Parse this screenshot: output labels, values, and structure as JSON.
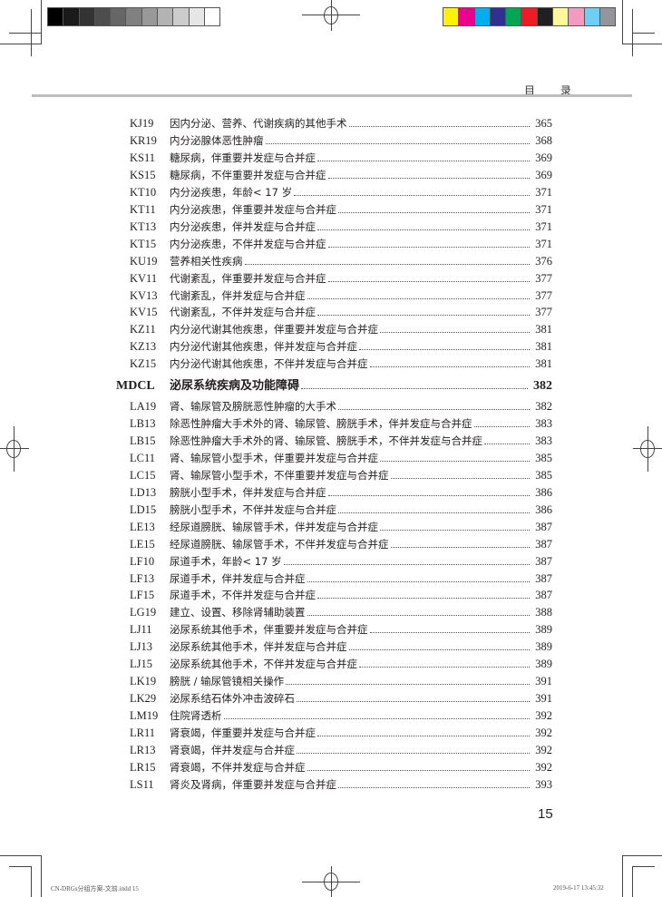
{
  "print_marks": {
    "grayscale_swatches": [
      "#000000",
      "#1a1a1a",
      "#333333",
      "#4d4d4d",
      "#666666",
      "#808080",
      "#999999",
      "#b3b3b3",
      "#cccccc",
      "#e6e6e6",
      "#ffffff"
    ],
    "color_swatches": [
      "#fff200",
      "#ec008c",
      "#00aeef",
      "#2e3192",
      "#00a651",
      "#ed1c24",
      "#231f20",
      "#fff799",
      "#f49ac1",
      "#6dcff6",
      "#939598"
    ]
  },
  "header": {
    "title": "目 录"
  },
  "toc": [
    {
      "code": "KJ19",
      "title": "因内分泌、营养、代谢疾病的其他手术",
      "page": "365"
    },
    {
      "code": "KR19",
      "title": "内分泌腺体恶性肿瘤",
      "page": "368"
    },
    {
      "code": "KS11",
      "title": "糖尿病，伴重要并发症与合并症",
      "page": "369"
    },
    {
      "code": "KS15",
      "title": "糖尿病，不伴重要并发症与合并症",
      "page": "369"
    },
    {
      "code": "KT10",
      "title": "内分泌疾患，年龄< 17 岁",
      "page": "371"
    },
    {
      "code": "KT11",
      "title": "内分泌疾患，伴重要并发症与合并症",
      "page": "371"
    },
    {
      "code": "KT13",
      "title": "内分泌疾患，伴并发症与合并症",
      "page": "371"
    },
    {
      "code": "KT15",
      "title": "内分泌疾患，不伴并发症与合并症",
      "page": "371"
    },
    {
      "code": "KU19",
      "title": "营养相关性疾病",
      "page": "376"
    },
    {
      "code": "KV11",
      "title": "代谢紊乱，伴重要并发症与合并症",
      "page": "377"
    },
    {
      "code": "KV13",
      "title": "代谢紊乱，伴并发症与合并症",
      "page": "377"
    },
    {
      "code": "KV15",
      "title": "代谢紊乱，不伴并发症与合并症",
      "page": "377"
    },
    {
      "code": "KZ11",
      "title": "内分泌代谢其他疾患，伴重要并发症与合并症",
      "page": "381"
    },
    {
      "code": "KZ13",
      "title": "内分泌代谢其他疾患，伴并发症与合并症",
      "page": "381"
    },
    {
      "code": "KZ15",
      "title": "内分泌代谢其他疾患，不伴并发症与合并症",
      "page": "381"
    },
    {
      "code": "MDCL",
      "title": "泌尿系统疾病及功能障碍",
      "page": "382",
      "major": true
    },
    {
      "code": "LA19",
      "title": "肾、输尿管及膀胱恶性肿瘤的大手术",
      "page": "382"
    },
    {
      "code": "LB13",
      "title": "除恶性肿瘤大手术外的肾、输尿管、膀胱手术，伴并发症与合并症",
      "page": "383"
    },
    {
      "code": "LB15",
      "title": "除恶性肿瘤大手术外的肾、输尿管、膀胱手术，不伴并发症与合并症",
      "page": "383"
    },
    {
      "code": "LC11",
      "title": "肾、输尿管小型手术，伴重要并发症与合并症",
      "page": "385"
    },
    {
      "code": "LC15",
      "title": "肾、输尿管小型手术，不伴重要并发症与合并症",
      "page": "385"
    },
    {
      "code": "LD13",
      "title": "膀胱小型手术，伴并发症与合并症",
      "page": "386"
    },
    {
      "code": "LD15",
      "title": "膀胱小型手术，不伴并发症与合并症",
      "page": "386"
    },
    {
      "code": "LE13",
      "title": "经尿道膀胱、输尿管手术，伴并发症与合并症",
      "page": "387"
    },
    {
      "code": "LE15",
      "title": "经尿道膀胱、输尿管手术，不伴并发症与合并症",
      "page": "387"
    },
    {
      "code": "LF10",
      "title": "尿道手术，年龄< 17 岁",
      "page": "387"
    },
    {
      "code": "LF13",
      "title": "尿道手术，伴并发症与合并症",
      "page": "387"
    },
    {
      "code": "LF15",
      "title": "尿道手术，不伴并发症与合并症",
      "page": "387"
    },
    {
      "code": "LG19",
      "title": "建立、设置、移除肾辅助装置",
      "page": "388"
    },
    {
      "code": "LJ11",
      "title": "泌尿系统其他手术，伴重要并发症与合并症",
      "page": "389"
    },
    {
      "code": "LJ13",
      "title": "泌尿系统其他手术，伴并发症与合并症",
      "page": "389"
    },
    {
      "code": "LJ15",
      "title": "泌尿系统其他手术，不伴并发症与合并症",
      "page": "389"
    },
    {
      "code": "LK19",
      "title": "膀胱 / 输尿管镜相关操作",
      "page": "391"
    },
    {
      "code": "LK29",
      "title": "泌尿系结石体外冲击波碎石",
      "page": "391"
    },
    {
      "code": "LM19",
      "title": "住院肾透析",
      "page": "392"
    },
    {
      "code": "LR11",
      "title": "肾衰竭，伴重要并发症与合并症",
      "page": "392"
    },
    {
      "code": "LR13",
      "title": "肾衰竭，伴并发症与合并症",
      "page": "392"
    },
    {
      "code": "LR15",
      "title": "肾衰竭，不伴并发症与合并症",
      "page": "392"
    },
    {
      "code": "LS11",
      "title": "肾炎及肾病，伴重要并发症与合并症",
      "page": "393"
    }
  ],
  "page_number": "15",
  "footer": {
    "file": "CN-DRGs分组方案-文前.indd   15",
    "timestamp": "2019-6-17   13:45:32"
  }
}
